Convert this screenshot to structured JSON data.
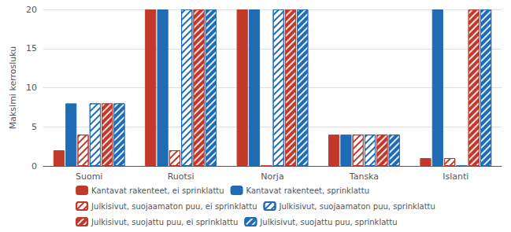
{
  "chart_data": {
    "type": "bar",
    "categories": [
      "Suomi",
      "Ruotsi",
      "Norja",
      "Tanska",
      "Islanti"
    ],
    "series": [
      {
        "name": "Kantavat rakenteet, ei sprinklattu",
        "color": "#C0392B",
        "values": [
          2,
          20,
          20,
          4,
          1
        ]
      },
      {
        "name": "Kantavat rakenteet, sprinklattu",
        "color": "#1F6CB5",
        "values": [
          8,
          20,
          20,
          4,
          20
        ]
      },
      {
        "name": "Julkisivut, suojaamaton puu, ei sprinklattu",
        "color": "#C0392B",
        "values": [
          4,
          2,
          0,
          4,
          1
        ]
      },
      {
        "name": "Julkisivut, suojaamaton puu, sprinklattu",
        "color": "#1F6CB5",
        "values": [
          8,
          20,
          20,
          4,
          0
        ]
      },
      {
        "name": "Julkisivut, suojattu puu, ei sprinklattu",
        "color": "#C0392B",
        "values": [
          8,
          20,
          20,
          4,
          20
        ]
      },
      {
        "name": "Julkisivut, suojattu puu, sprinklattu",
        "color": "#1F6CB5",
        "values": [
          8,
          20,
          20,
          4,
          20
        ]
      }
    ],
    "ylabel": "Maksimi kerrosluku",
    "ylim": [
      0,
      20
    ],
    "yticks": [
      0,
      5,
      10,
      15,
      20
    ],
    "grid": true,
    "legend": "bottom"
  }
}
